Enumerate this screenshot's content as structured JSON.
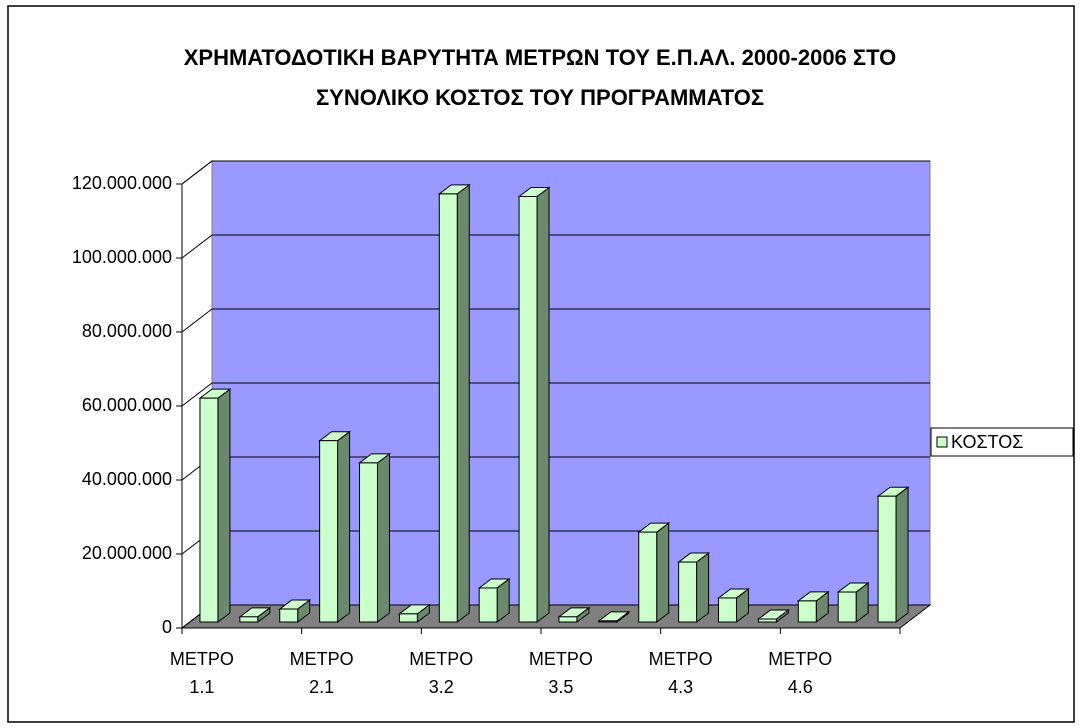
{
  "chart_data": {
    "type": "bar3d",
    "title": "ΧΡΗΜΑΤΟΔΟΤΙΚΗ ΒΑΡΥΤΗΤΑ ΜΕΤΡΩΝ ΤΟΥ Ε.Π.ΑΛ. 2000-2006 ΣΤΟ ΣΥΝΟΛΙΚΟ ΚΟΣΤΟΣ ΤΟΥ ΠΡΟΓΡΑΜΜΑΤΟΣ",
    "categories": [
      "ΜΕΤΡΟ 1.1",
      null,
      null,
      "ΜΕΤΡΟ 2.1",
      null,
      null,
      "ΜΕΤΡΟ 3.2",
      null,
      null,
      "ΜΕΤΡΟ 3.5",
      null,
      null,
      "ΜΕΤΡΟ 4.3",
      null,
      null,
      "ΜΕΤΡΟ 4.6",
      null,
      null
    ],
    "series": [
      {
        "name": "ΚΟΣΤΟΣ",
        "color": "#ccffcc",
        "side_color": "#6b8a6b",
        "values": [
          60500000,
          1400000,
          3500000,
          49000000,
          43000000,
          2200000,
          115700000,
          9200000,
          115000000,
          1400000,
          300000,
          24300000,
          16200000,
          6500000,
          800000,
          5700000,
          8100000,
          34000000
        ]
      }
    ],
    "ylim": [
      0,
      120000000
    ],
    "yticks": [
      0,
      {
        "value": 20000000,
        "label": "20.000.000"
      },
      {
        "value": 40000000,
        "label": "40.000.000"
      },
      {
        "value": 60000000,
        "label": "60.000.000"
      },
      {
        "value": 80000000,
        "label": "80.000.000"
      },
      {
        "value": 100000000,
        "label": "100.000.000"
      },
      {
        "value": 120000000,
        "label": "120.000.000"
      }
    ],
    "grid": true,
    "legend": "right",
    "wall_color": "#9999ff",
    "floor_color": "#808080"
  }
}
